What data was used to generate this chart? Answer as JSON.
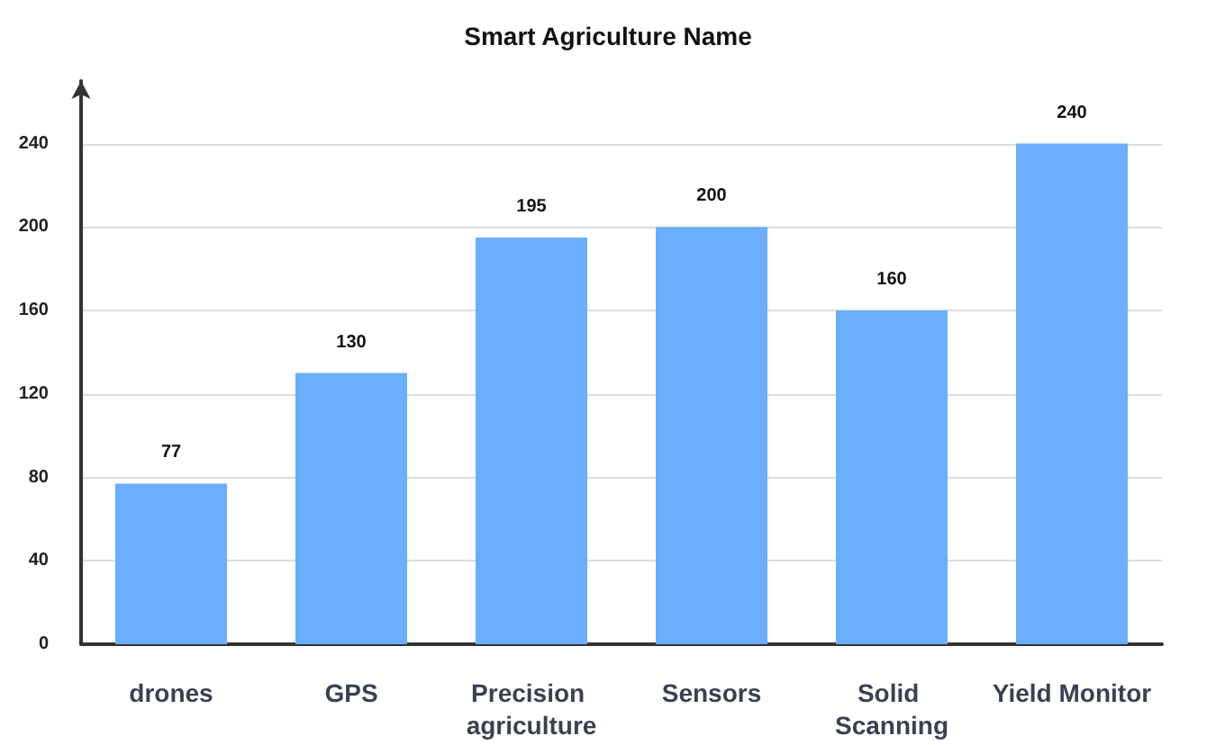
{
  "chart_data": {
    "type": "bar",
    "title": "Smart Agriculture Name",
    "categories": [
      "drones",
      "GPS",
      "Precision agriculture",
      "Sensors",
      "Solid Scanning",
      "Yield Monitor"
    ],
    "values": [
      77,
      130,
      195,
      200,
      160,
      240
    ],
    "color": "#6aaefc",
    "ylim": [
      0,
      270
    ],
    "yticks": [
      0,
      40,
      80,
      120,
      160,
      200,
      240
    ],
    "grid": "y",
    "data_labels": true
  }
}
